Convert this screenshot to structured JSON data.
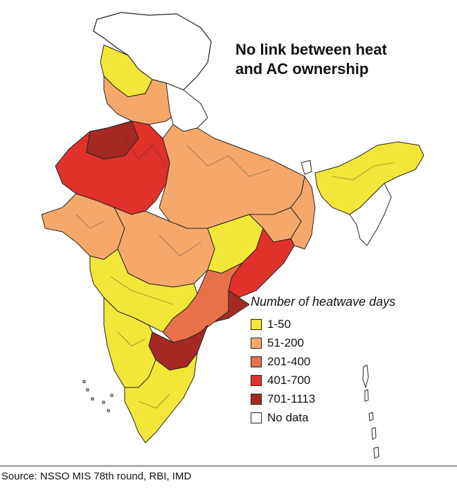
{
  "title_line1": "No link between heat",
  "title_line2": "and AC ownership",
  "legend": {
    "title": "Number of heatwave days",
    "items": [
      {
        "label": "1-50",
        "color": "#f2e638"
      },
      {
        "label": "51-200",
        "color": "#f5a86a"
      },
      {
        "label": "201-400",
        "color": "#e8714a"
      },
      {
        "label": "401-700",
        "color": "#e0312a"
      },
      {
        "label": "701-1113",
        "color": "#a52a24"
      },
      {
        "label": "No data",
        "color": "#ffffff"
      }
    ]
  },
  "source": "Source: NSSO MIS 78th round, RBI, IMD",
  "colors": {
    "border": "#222222",
    "background": "#ffffff"
  }
}
